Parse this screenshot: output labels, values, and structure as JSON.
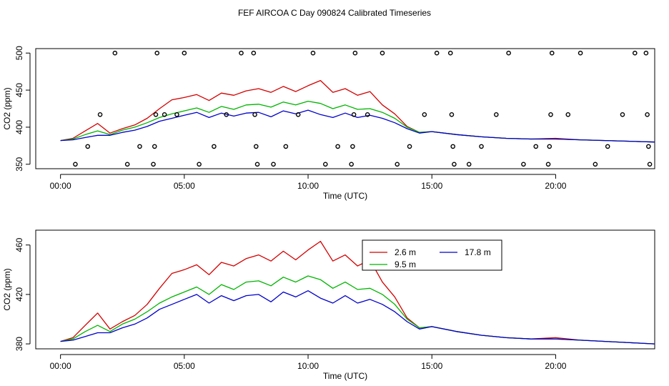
{
  "title": "FEF AIRCOA C  Day 090824  Calibrated Timeseries",
  "colors": {
    "2.6 m": "#d40000",
    "9.5 m": "#00b400",
    "17.8 m": "#0000cc",
    "axis": "#000000"
  },
  "chart_data": [
    {
      "type": "line",
      "panel": "top",
      "title": "FEF AIRCOA C  Day 090824  Calibrated Timeseries",
      "xlabel": "Time (UTC)",
      "ylabel": "CO2 (ppm)",
      "xlim": [
        -1,
        24
      ],
      "ylim": [
        344,
        506
      ],
      "x_ticks": [
        0,
        5,
        10,
        15,
        20
      ],
      "x_tick_labels": [
        "00:00",
        "05:00",
        "10:00",
        "15:00",
        "20:00"
      ],
      "y_ticks": [
        350,
        400,
        450,
        500
      ],
      "y_tick_labels": [
        "350",
        "400",
        "450",
        "500"
      ],
      "legend": false,
      "series": [
        {
          "name": "2.6 m",
          "color": "#d40000",
          "x": [
            0,
            0.5,
            1,
            1.5,
            2,
            2.5,
            3,
            3.5,
            4,
            4.5,
            5,
            5.5,
            6,
            6.5,
            7,
            7.5,
            8,
            8.5,
            9,
            9.5,
            10,
            10.5,
            11,
            11.5,
            12,
            12.5,
            13,
            13.5,
            14,
            14.5,
            15,
            16,
            17,
            18,
            19,
            20,
            21,
            22,
            23,
            24
          ],
          "y": [
            382,
            385,
            395,
            405,
            392,
            398,
            403,
            412,
            425,
            437,
            440,
            444,
            436,
            446,
            443,
            449,
            452,
            447,
            455,
            448,
            456,
            463,
            447,
            452,
            443,
            448,
            430,
            418,
            401,
            393,
            394,
            390,
            387,
            385,
            384,
            385,
            383,
            382,
            381,
            380
          ]
        },
        {
          "name": "9.5 m",
          "color": "#00b400",
          "x": [
            0,
            0.5,
            1,
            1.5,
            2,
            2.5,
            3,
            3.5,
            4,
            4.5,
            5,
            5.5,
            6,
            6.5,
            7,
            7.5,
            8,
            8.5,
            9,
            9.5,
            10,
            10.5,
            11,
            11.5,
            12,
            12.5,
            13,
            13.5,
            14,
            14.5,
            15,
            16,
            17,
            18,
            19,
            20,
            21,
            22,
            23,
            24
          ],
          "y": [
            382,
            384,
            390,
            395,
            390,
            396,
            400,
            406,
            413,
            418,
            422,
            426,
            420,
            428,
            424,
            430,
            431,
            427,
            434,
            430,
            435,
            432,
            425,
            430,
            424,
            425,
            420,
            412,
            400,
            393,
            394,
            390,
            387,
            385,
            384,
            384,
            383,
            382,
            381,
            380
          ]
        },
        {
          "name": "17.8 m",
          "color": "#0000cc",
          "x": [
            0,
            0.5,
            1,
            1.5,
            2,
            2.5,
            3,
            3.5,
            4,
            4.5,
            5,
            5.5,
            6,
            6.5,
            7,
            7.5,
            8,
            8.5,
            9,
            9.5,
            10,
            10.5,
            11,
            11.5,
            12,
            12.5,
            13,
            13.5,
            14,
            14.5,
            15,
            16,
            17,
            18,
            19,
            20,
            21,
            22,
            23,
            24
          ],
          "y": [
            382,
            383,
            386,
            389,
            389,
            393,
            396,
            401,
            408,
            412,
            416,
            420,
            413,
            419,
            415,
            419,
            420,
            414,
            422,
            418,
            423,
            417,
            413,
            419,
            413,
            416,
            412,
            406,
            398,
            392,
            394,
            390,
            387,
            385,
            384,
            384,
            383,
            382,
            381,
            380
          ]
        }
      ],
      "flag_points": [
        {
          "x": 0.6,
          "y": 350
        },
        {
          "x": 1.1,
          "y": 374
        },
        {
          "x": 1.6,
          "y": 417
        },
        {
          "x": 2.2,
          "y": 500
        },
        {
          "x": 2.7,
          "y": 350
        },
        {
          "x": 3.2,
          "y": 374
        },
        {
          "x": 3.75,
          "y": 350
        },
        {
          "x": 3.8,
          "y": 374
        },
        {
          "x": 3.85,
          "y": 417
        },
        {
          "x": 3.9,
          "y": 500
        },
        {
          "x": 4.2,
          "y": 417
        },
        {
          "x": 4.7,
          "y": 417
        },
        {
          "x": 5.0,
          "y": 500
        },
        {
          "x": 5.6,
          "y": 350
        },
        {
          "x": 6.2,
          "y": 374
        },
        {
          "x": 6.7,
          "y": 417
        },
        {
          "x": 7.3,
          "y": 500
        },
        {
          "x": 7.8,
          "y": 500
        },
        {
          "x": 7.85,
          "y": 417
        },
        {
          "x": 7.9,
          "y": 374
        },
        {
          "x": 7.95,
          "y": 350
        },
        {
          "x": 8.6,
          "y": 350
        },
        {
          "x": 9.1,
          "y": 374
        },
        {
          "x": 9.6,
          "y": 417
        },
        {
          "x": 10.2,
          "y": 500
        },
        {
          "x": 10.7,
          "y": 350
        },
        {
          "x": 11.2,
          "y": 374
        },
        {
          "x": 11.75,
          "y": 350
        },
        {
          "x": 11.8,
          "y": 374
        },
        {
          "x": 11.85,
          "y": 417
        },
        {
          "x": 11.9,
          "y": 500
        },
        {
          "x": 12.4,
          "y": 417
        },
        {
          "x": 13.0,
          "y": 500
        },
        {
          "x": 13.6,
          "y": 350
        },
        {
          "x": 14.1,
          "y": 374
        },
        {
          "x": 14.7,
          "y": 417
        },
        {
          "x": 15.2,
          "y": 500
        },
        {
          "x": 15.75,
          "y": 500
        },
        {
          "x": 15.8,
          "y": 417
        },
        {
          "x": 15.85,
          "y": 374
        },
        {
          "x": 15.9,
          "y": 350
        },
        {
          "x": 16.5,
          "y": 350
        },
        {
          "x": 17.0,
          "y": 374
        },
        {
          "x": 17.6,
          "y": 417
        },
        {
          "x": 18.1,
          "y": 500
        },
        {
          "x": 18.7,
          "y": 350
        },
        {
          "x": 19.2,
          "y": 374
        },
        {
          "x": 19.7,
          "y": 350
        },
        {
          "x": 19.75,
          "y": 374
        },
        {
          "x": 19.8,
          "y": 417
        },
        {
          "x": 19.85,
          "y": 500
        },
        {
          "x": 20.5,
          "y": 417
        },
        {
          "x": 21.0,
          "y": 500
        },
        {
          "x": 21.6,
          "y": 350
        },
        {
          "x": 22.1,
          "y": 374
        },
        {
          "x": 22.7,
          "y": 417
        },
        {
          "x": 23.2,
          "y": 500
        },
        {
          "x": 23.65,
          "y": 500
        },
        {
          "x": 23.7,
          "y": 417
        },
        {
          "x": 23.75,
          "y": 374
        },
        {
          "x": 23.8,
          "y": 350
        }
      ]
    },
    {
      "type": "line",
      "panel": "bottom",
      "xlabel": "Time (UTC)",
      "ylabel": "CO2 (ppm)",
      "xlim": [
        -1,
        24
      ],
      "ylim": [
        376,
        472
      ],
      "x_ticks": [
        0,
        5,
        10,
        15,
        20
      ],
      "x_tick_labels": [
        "00:00",
        "05:00",
        "10:00",
        "15:00",
        "20:00"
      ],
      "y_ticks": [
        380,
        420,
        460
      ],
      "y_tick_labels": [
        "380",
        "420",
        "460"
      ],
      "legend": true,
      "legend_position": "top-right",
      "series": [
        {
          "name": "2.6 m",
          "color": "#d40000",
          "x": [
            0,
            0.5,
            1,
            1.5,
            2,
            2.5,
            3,
            3.5,
            4,
            4.5,
            5,
            5.5,
            6,
            6.5,
            7,
            7.5,
            8,
            8.5,
            9,
            9.5,
            10,
            10.5,
            11,
            11.5,
            12,
            12.5,
            13,
            13.5,
            14,
            14.5,
            15,
            16,
            17,
            18,
            19,
            20,
            21,
            22,
            23,
            24
          ],
          "y": [
            382,
            385,
            395,
            405,
            392,
            398,
            403,
            412,
            425,
            437,
            440,
            444,
            436,
            446,
            443,
            449,
            452,
            447,
            455,
            448,
            456,
            463,
            447,
            452,
            443,
            448,
            430,
            418,
            401,
            393,
            394,
            390,
            387,
            385,
            384,
            385,
            383,
            382,
            381,
            380
          ]
        },
        {
          "name": "9.5 m",
          "color": "#00b400",
          "x": [
            0,
            0.5,
            1,
            1.5,
            2,
            2.5,
            3,
            3.5,
            4,
            4.5,
            5,
            5.5,
            6,
            6.5,
            7,
            7.5,
            8,
            8.5,
            9,
            9.5,
            10,
            10.5,
            11,
            11.5,
            12,
            12.5,
            13,
            13.5,
            14,
            14.5,
            15,
            16,
            17,
            18,
            19,
            20,
            21,
            22,
            23,
            24
          ],
          "y": [
            382,
            384,
            390,
            395,
            390,
            396,
            400,
            406,
            413,
            418,
            422,
            426,
            420,
            428,
            424,
            430,
            431,
            427,
            434,
            430,
            435,
            432,
            425,
            430,
            424,
            425,
            420,
            412,
            400,
            393,
            394,
            390,
            387,
            385,
            384,
            384,
            383,
            382,
            381,
            380
          ]
        },
        {
          "name": "17.8 m",
          "color": "#0000cc",
          "x": [
            0,
            0.5,
            1,
            1.5,
            2,
            2.5,
            3,
            3.5,
            4,
            4.5,
            5,
            5.5,
            6,
            6.5,
            7,
            7.5,
            8,
            8.5,
            9,
            9.5,
            10,
            10.5,
            11,
            11.5,
            12,
            12.5,
            13,
            13.5,
            14,
            14.5,
            15,
            16,
            17,
            18,
            19,
            20,
            21,
            22,
            23,
            24
          ],
          "y": [
            382,
            383,
            386,
            389,
            389,
            393,
            396,
            401,
            408,
            412,
            416,
            420,
            413,
            419,
            415,
            419,
            420,
            414,
            422,
            418,
            423,
            417,
            413,
            419,
            413,
            416,
            412,
            406,
            398,
            392,
            394,
            390,
            387,
            385,
            384,
            384,
            383,
            382,
            381,
            380
          ]
        }
      ]
    }
  ]
}
